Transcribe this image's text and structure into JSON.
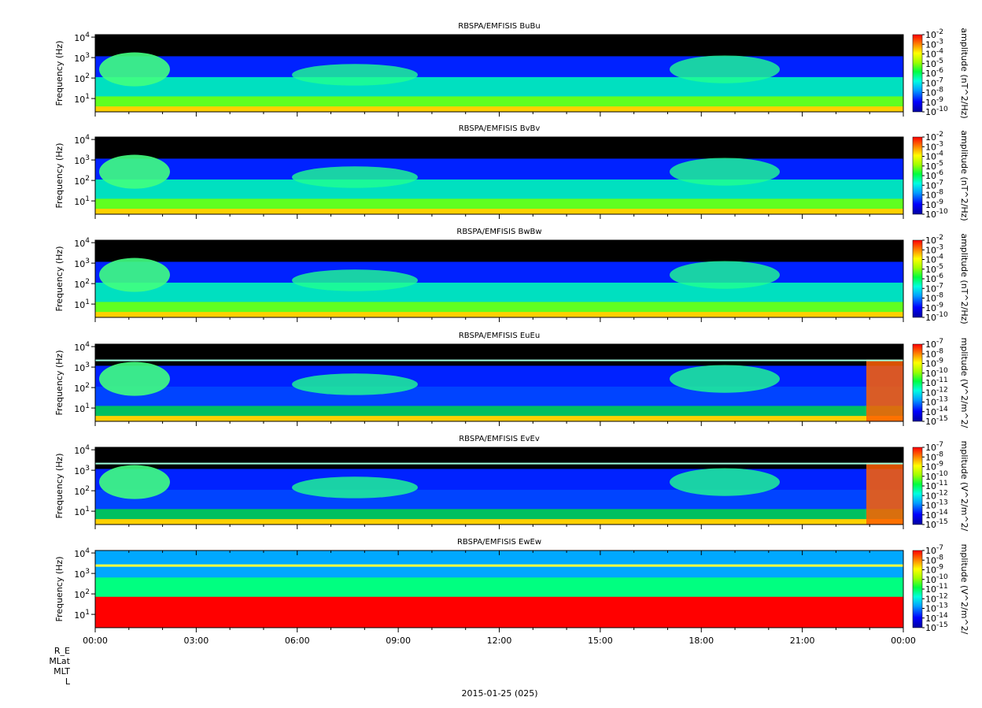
{
  "chart_data": [
    {
      "type": "heatmap",
      "title": "RBSPA/EMFISIS  BuBu",
      "ylabel": "Frequency (Hz)",
      "colorbar_label": "amplitude (nT^2/Hz)",
      "y_scale": "log",
      "yticks": [
        "10^1",
        "10^2",
        "10^3",
        "10^4"
      ],
      "colorbar_ticks": [
        "10^-2",
        "10^-3",
        "10^-4",
        "10^-5",
        "10^-6",
        "10^-7",
        "10^-8",
        "10^-9",
        "10^-10"
      ]
    },
    {
      "type": "heatmap",
      "title": "RBSPA/EMFISIS  BvBv",
      "ylabel": "Frequency (Hz)",
      "colorbar_label": "amplitude (nT^2/Hz)",
      "y_scale": "log",
      "yticks": [
        "10^1",
        "10^2",
        "10^3",
        "10^4"
      ],
      "colorbar_ticks": [
        "10^-2",
        "10^-3",
        "10^-4",
        "10^-5",
        "10^-6",
        "10^-7",
        "10^-8",
        "10^-9",
        "10^-10"
      ]
    },
    {
      "type": "heatmap",
      "title": "RBSPA/EMFISIS  BwBw",
      "ylabel": "Frequency (Hz)",
      "colorbar_label": "amplitude (nT^2/Hz)",
      "y_scale": "log",
      "yticks": [
        "10^1",
        "10^2",
        "10^3",
        "10^4"
      ],
      "colorbar_ticks": [
        "10^-2",
        "10^-3",
        "10^-4",
        "10^-5",
        "10^-6",
        "10^-7",
        "10^-8",
        "10^-9",
        "10^-10"
      ]
    },
    {
      "type": "heatmap",
      "title": "RBSPA/EMFISIS  EuEu",
      "ylabel": "Frequency (Hz)",
      "colorbar_label": "mplitude (V^2/m^2/",
      "y_scale": "log",
      "yticks": [
        "10^1",
        "10^2",
        "10^3",
        "10^4"
      ],
      "colorbar_ticks": [
        "10^-7",
        "10^-8",
        "10^-9",
        "10^-10",
        "10^-11",
        "10^-12",
        "10^-13",
        "10^-14",
        "10^-15"
      ]
    },
    {
      "type": "heatmap",
      "title": "RBSPA/EMFISIS  EvEv",
      "ylabel": "Frequency (Hz)",
      "colorbar_label": "mplitude (V^2/m^2/",
      "y_scale": "log",
      "yticks": [
        "10^1",
        "10^2",
        "10^3",
        "10^4"
      ],
      "colorbar_ticks": [
        "10^-7",
        "10^-8",
        "10^-9",
        "10^-10",
        "10^-11",
        "10^-12",
        "10^-13",
        "10^-14",
        "10^-15"
      ]
    },
    {
      "type": "heatmap",
      "title": "RBSPA/EMFISIS  EwEw",
      "ylabel": "Frequency (Hz)",
      "colorbar_label": "mplitude (V^2/m^2/",
      "y_scale": "log",
      "yticks": [
        "10^1",
        "10^2",
        "10^3",
        "10^4"
      ],
      "colorbar_ticks": [
        "10^-7",
        "10^-8",
        "10^-9",
        "10^-10",
        "10^-11",
        "10^-12",
        "10^-13",
        "10^-14",
        "10^-15"
      ]
    }
  ],
  "x_axis": {
    "tick_labels": [
      "00:00",
      "03:00",
      "06:00",
      "09:00",
      "12:00",
      "15:00",
      "18:00",
      "21:00",
      "00:00"
    ]
  },
  "orbit_labels": [
    "R_E",
    "MLat",
    "MLT",
    "L"
  ],
  "date_label": "2015-01-25 (025)"
}
